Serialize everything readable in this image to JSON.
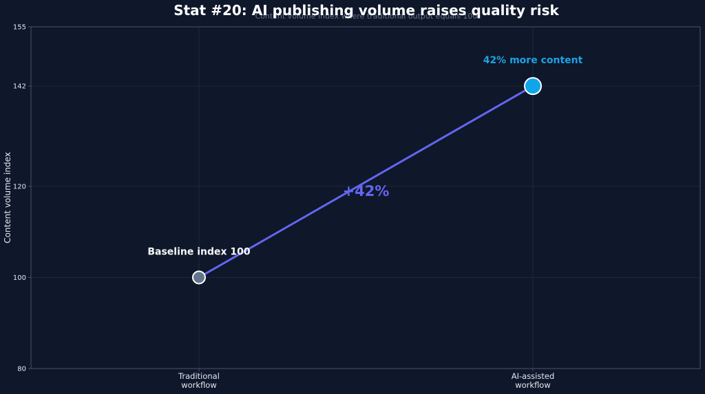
{
  "chart_data": {
    "type": "line",
    "title": "Stat #20: AI publishing volume raises quality risk",
    "subtitle": "Content volume index where traditional output equals 100",
    "ylabel": "Content volume index",
    "xlabel": "",
    "categories": [
      [
        "Traditional",
        "workflow"
      ],
      [
        "AI-assisted",
        "workflow"
      ]
    ],
    "values": [
      100,
      142
    ],
    "ylim": [
      80,
      155
    ],
    "yticks": [
      80,
      100,
      120,
      142,
      155
    ],
    "grid": true,
    "annotations": {
      "baseline": "Baseline index 100",
      "ai": "42% more content",
      "delta": "+42%"
    },
    "colors": {
      "background": "#0f172a",
      "line": "#6366f1",
      "baseline_point": "#64748b",
      "ai_point": "#0ea5e9",
      "ai_label": "#1ca3e4",
      "grid": "#1e293b",
      "axis": "#475569"
    }
  }
}
